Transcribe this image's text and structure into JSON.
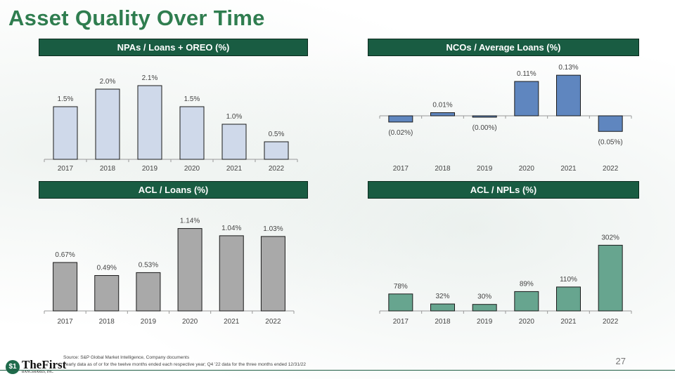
{
  "title": "Asset Quality Over Time",
  "chart_data": [
    {
      "type": "bar",
      "title": "NPAs / Loans + OREO (%)",
      "categories": [
        "2017",
        "2018",
        "2019",
        "2020",
        "2021",
        "2022"
      ],
      "values": [
        1.5,
        2.0,
        2.1,
        1.5,
        1.0,
        0.5
      ],
      "labels": [
        "1.5%",
        "2.0%",
        "2.1%",
        "1.5%",
        "1.0%",
        "0.5%"
      ],
      "color": "#cfd9ea"
    },
    {
      "type": "bar",
      "title": "NCOs / Average Loans (%)",
      "categories": [
        "2017",
        "2018",
        "2019",
        "2020",
        "2021",
        "2022"
      ],
      "values": [
        -0.02,
        0.01,
        -0.004,
        0.11,
        0.13,
        -0.05
      ],
      "labels": [
        "(0.02%)",
        "0.01%",
        "(0.00%)",
        "0.11%",
        "0.13%",
        "(0.05%)"
      ],
      "color": "#5f86bf"
    },
    {
      "type": "bar",
      "title": "ACL / Loans (%)",
      "categories": [
        "2017",
        "2018",
        "2019",
        "2020",
        "2021",
        "2022"
      ],
      "values": [
        0.67,
        0.49,
        0.53,
        1.14,
        1.04,
        1.03
      ],
      "labels": [
        "0.67%",
        "0.49%",
        "0.53%",
        "1.14%",
        "1.04%",
        "1.03%"
      ],
      "color": "#a9a9a9"
    },
    {
      "type": "bar",
      "title": "ACL / NPLs (%)",
      "categories": [
        "2017",
        "2018",
        "2019",
        "2020",
        "2021",
        "2022"
      ],
      "values": [
        78,
        32,
        30,
        89,
        110,
        302
      ],
      "labels": [
        "78%",
        "32%",
        "30%",
        "89%",
        "110%",
        "302%"
      ],
      "color": "#67a58f"
    }
  ],
  "footer": {
    "source": "Source: S&P Global Market Intelligence, Company documents",
    "note": "Yearly data as of or for the twelve months ended each respective year; Q4 '22 data for the three months ended 12/31/22",
    "page": "27",
    "logo_text": "TheFirst",
    "logo_sub": "BANCSHARES, INC.",
    "logo_seal": "$1"
  }
}
